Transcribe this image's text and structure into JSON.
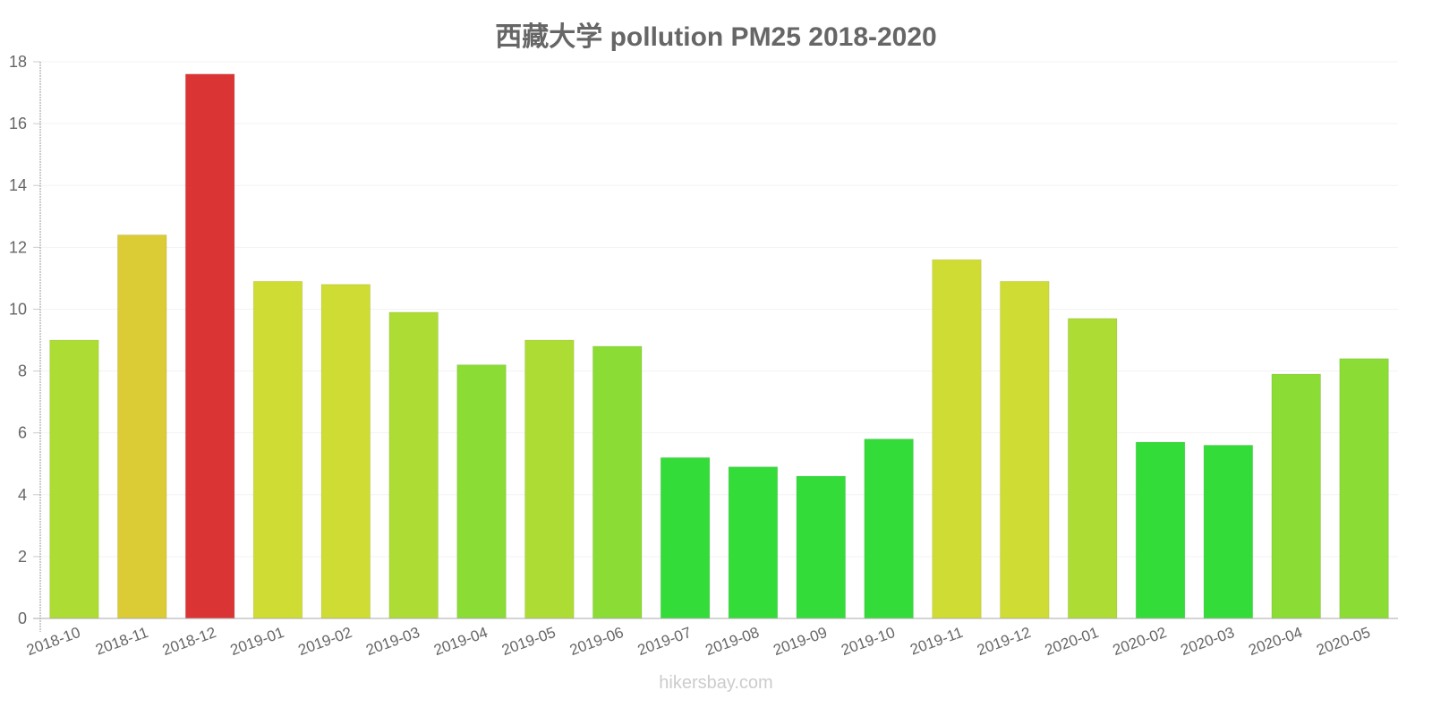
{
  "header": {
    "title": "西藏大学 pollution PM25 2018-2020"
  },
  "footer": {
    "watermark": "hikersbay.com"
  },
  "chart_data": {
    "type": "bar",
    "title": "西藏大学 pollution PM25 2018-2020",
    "xlabel": "",
    "ylabel": "",
    "ylim": [
      0,
      18
    ],
    "yticks": [
      0,
      2,
      4,
      6,
      8,
      10,
      12,
      14,
      16,
      18
    ],
    "grid": true,
    "legend": null,
    "categories": [
      "2018-10",
      "2018-11",
      "2018-12",
      "2019-01",
      "2019-02",
      "2019-03",
      "2019-04",
      "2019-05",
      "2019-06",
      "2019-07",
      "2019-08",
      "2019-09",
      "2019-10",
      "2019-11",
      "2019-12",
      "2020-01",
      "2020-02",
      "2020-03",
      "2020-04",
      "2020-05"
    ],
    "values": [
      9.0,
      12.4,
      17.6,
      10.9,
      10.8,
      9.9,
      8.2,
      9.0,
      8.8,
      5.2,
      4.9,
      4.6,
      5.8,
      11.6,
      10.9,
      9.7,
      5.7,
      5.6,
      7.9,
      8.4
    ],
    "colors": [
      "#addc34",
      "#dbcb34",
      "#db3434",
      "#cfdc34",
      "#cfdc34",
      "#addc34",
      "#8bdc34",
      "#addc34",
      "#8bdc34",
      "#34dc3a",
      "#34dc3a",
      "#34dc3a",
      "#34dc3a",
      "#cfdc34",
      "#cfdc34",
      "#addc34",
      "#34dc3a",
      "#34dc3a",
      "#8bdc34",
      "#8bdc34"
    ]
  }
}
